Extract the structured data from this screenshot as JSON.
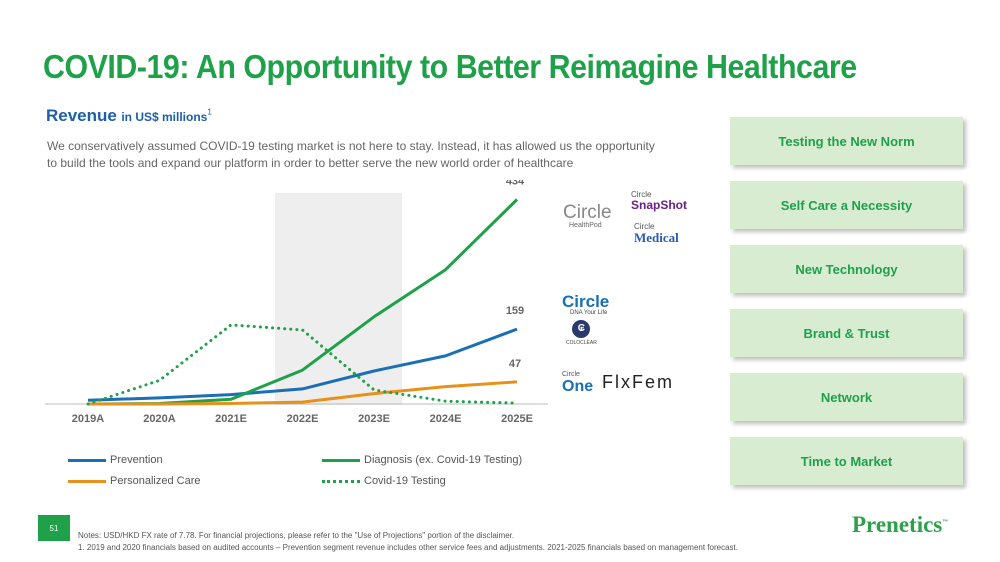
{
  "title": "COVID-19: An Opportunity to Better Reimagine Healthcare",
  "revenue_header": {
    "word": "Revenue",
    "unit": "in US$ millions",
    "footnote_mark": "1"
  },
  "description": "We conservatively assumed COVID-19 testing market is not here to stay. Instead, it has allowed us the opportunity to build the tools and expand our platform in order to better serve the new world order of healthcare",
  "colors": {
    "green": "#1fa14a",
    "blue": "#1a6fb5",
    "orange": "#e8901a",
    "box_bg": "#d8ecd2",
    "highlight": "#eeeeee"
  },
  "chart_data": {
    "type": "line",
    "title": "Revenue in US$ millions",
    "categories": [
      "2019A",
      "2020A",
      "2021E",
      "2022E",
      "2023E",
      "2024E",
      "2025E"
    ],
    "highlighted_category": "2022E",
    "ylim": [
      0,
      450
    ],
    "grid": false,
    "legend_position": "bottom",
    "series": [
      {
        "name": "Prevention",
        "color": "#1a6fb5",
        "style": "solid",
        "values": [
          8,
          13,
          20,
          32,
          70,
          102,
          159
        ]
      },
      {
        "name": "Diagnosis (ex. Covid-19 Testing)",
        "color": "#1fa14a",
        "style": "solid",
        "values": [
          0,
          1,
          10,
          72,
          185,
          285,
          434
        ]
      },
      {
        "name": "Personalized Care",
        "color": "#e8901a",
        "style": "solid",
        "values": [
          0,
          0,
          1,
          4,
          22,
          37,
          47
        ]
      },
      {
        "name": "Covid-19 Testing",
        "color": "#1fa14a",
        "style": "dotted",
        "values": [
          0,
          50,
          168,
          157,
          30,
          6,
          2
        ]
      }
    ],
    "data_labels": [
      {
        "series": "Diagnosis (ex. Covid-19 Testing)",
        "category": "2025E",
        "text": "434"
      },
      {
        "series": "Prevention",
        "category": "2025E",
        "text": "159"
      },
      {
        "series": "Personalized Care",
        "category": "2025E",
        "text": "47"
      }
    ]
  },
  "legend": {
    "prevention": "Prevention",
    "diagnosis": "Diagnosis (ex. Covid-19 Testing)",
    "personalized": "Personalized Care",
    "covid": "Covid-19 Testing"
  },
  "logos": {
    "circle_healthpod": {
      "name": "Circle",
      "sub": "HealthPod"
    },
    "snapshot": {
      "top": "Circle",
      "name": "SnapShot"
    },
    "medical": {
      "top": "Circle",
      "name": "Medical"
    },
    "dna": {
      "name": "Circle",
      "sub": "DNA Your Life"
    },
    "coloclear": {
      "name": "COLOCLEAR"
    },
    "one": {
      "top": "Circle",
      "name": "One"
    },
    "flxfem": {
      "name": "FlxFem"
    }
  },
  "side_boxes": [
    "Testing the New Norm",
    "Self Care a Necessity",
    "New Technology",
    "Brand & Trust",
    "Network",
    "Time to Market"
  ],
  "page_number": "51",
  "notes": [
    "Notes: USD/HKD FX rate of 7.78. For financial projections, please refer to the \"Use of Projections\" portion of the disclaimer.",
    "1. 2019 and 2020 financials based on audited accounts – Prevention segment revenue includes other service fees and adjustments. 2021-2025 financials based on management forecast."
  ],
  "brand": {
    "name": "Prenetics",
    "tm": "™"
  }
}
